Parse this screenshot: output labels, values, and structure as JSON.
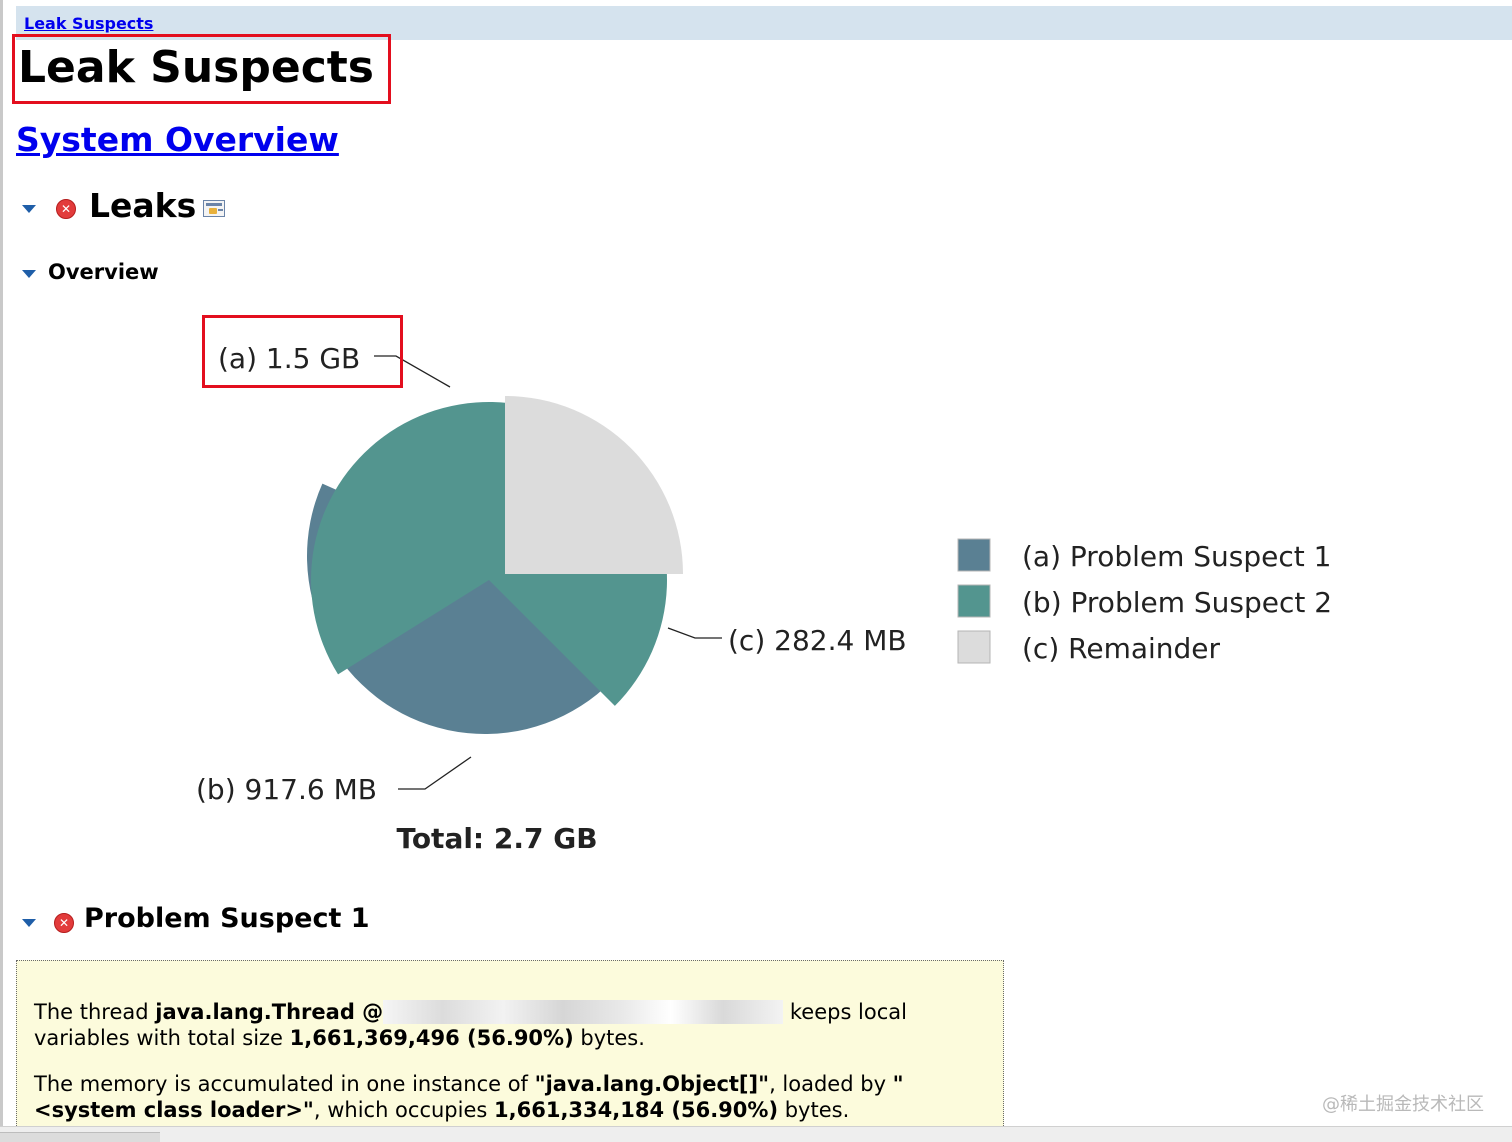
{
  "breadcrumb": {
    "label": "Leak Suspects"
  },
  "page_title": "Leak Suspects",
  "system_overview_link": "System Overview",
  "sections": {
    "leaks": "Leaks",
    "overview": "Overview",
    "problem_suspect_1": "Problem Suspect 1"
  },
  "chart_data": {
    "type": "pie",
    "slices": [
      {
        "key": "(a)",
        "name": "Problem Suspect 1",
        "label": "1.5 GB",
        "value_bytes": 1661369496,
        "color": "#5a8093"
      },
      {
        "key": "(b)",
        "name": "Problem Suspect 2",
        "label": "917.6 MB",
        "value_mb": 917.6,
        "color": "#53958f"
      },
      {
        "key": "(c)",
        "name": "Remainder",
        "label": "282.4 MB",
        "value_mb": 282.4,
        "color": "#dcdcdc"
      }
    ],
    "total_label": "Total: 2.7 GB",
    "legend_position": "right"
  },
  "suspect_1": {
    "p1_a": "The thread ",
    "p1_b": "java.lang.Thread @",
    "p1_c": " keeps local variables with total size ",
    "p1_d": "1,661,369,496 (56.90%)",
    "p1_e": " bytes.",
    "p2_a": "The memory is accumulated in one instance of ",
    "p2_b": "\"java.lang.Object[]\"",
    "p2_c": ", loaded by ",
    "p2_d": "\"<system class loader>\"",
    "p2_e": ", which occupies ",
    "p2_f": "1,661,334,184 (56.90%)",
    "p2_g": " bytes."
  },
  "watermark": "@稀土掘金技术社区",
  "icons": {
    "collapse": "triangle-down-icon",
    "error": "error-x-icon",
    "details": "details-icon"
  }
}
